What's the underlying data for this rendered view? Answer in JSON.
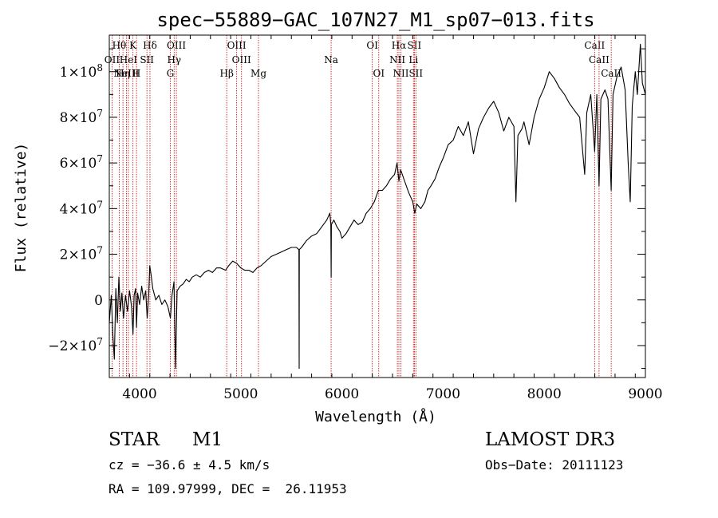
{
  "info": {
    "class": "STAR",
    "subclass": "M1",
    "cz": "cz = −36.6 ± 4.5 km/s",
    "radec": "RA = 109.97999, DEC =  26.11953",
    "survey": "LAMOST DR3",
    "obsdate": "Obs−Date: 20111123"
  },
  "chart_data": {
    "type": "line",
    "title": "spec−55889−GAC_107N27_M1_sp07−013.fits",
    "xlabel": "Wavelength (Å)",
    "ylabel": "Flux (relative)",
    "xlim": [
      3700,
      9000
    ],
    "ylim": [
      -34000000.0,
      116000000.0
    ],
    "xticks": [
      {
        "value": 4000,
        "label": "4000"
      },
      {
        "value": 5000,
        "label": "5000"
      },
      {
        "value": 6000,
        "label": "6000"
      },
      {
        "value": 7000,
        "label": "7000"
      },
      {
        "value": 8000,
        "label": "8000"
      },
      {
        "value": 9000,
        "label": "9000"
      }
    ],
    "yticks": [
      {
        "value": -20000000.0,
        "mantissa": "−2×10",
        "exp": "7"
      },
      {
        "value": 0,
        "mantissa": "0",
        "exp": ""
      },
      {
        "value": 20000000.0,
        "mantissa": "2×10",
        "exp": "7"
      },
      {
        "value": 40000000.0,
        "mantissa": "4×10",
        "exp": "7"
      },
      {
        "value": 60000000.0,
        "mantissa": "6×10",
        "exp": "7"
      },
      {
        "value": 80000000.0,
        "mantissa": "8×10",
        "exp": "7"
      },
      {
        "value": 100000000.0,
        "mantissa": "1×10",
        "exp": "8"
      }
    ],
    "line_color": "#000000",
    "marker_color": "#cc0000",
    "spectral_lines": [
      {
        "wave": 3798,
        "label": "Hθ",
        "row": 0
      },
      {
        "wave": 3727,
        "label": "OII",
        "row": 1
      },
      {
        "wave": 3835,
        "label": "Hη",
        "row": 2
      },
      {
        "wave": 3869,
        "label": "NeIII",
        "row": 2
      },
      {
        "wave": 3889,
        "label": "HeI",
        "row": 1
      },
      {
        "wave": 3934,
        "label": "K",
        "row": 0
      },
      {
        "wave": 3969,
        "label": "H",
        "row": 2
      },
      {
        "wave": 4072,
        "label": "SII",
        "row": 1
      },
      {
        "wave": 4102,
        "label": "Hδ",
        "row": 0
      },
      {
        "wave": 4304,
        "label": "G",
        "row": 2
      },
      {
        "wave": 4341,
        "label": "Hγ",
        "row": 1
      },
      {
        "wave": 4363,
        "label": "OIII",
        "row": 0
      },
      {
        "wave": 4861,
        "label": "Hβ",
        "row": 2
      },
      {
        "wave": 4959,
        "label": "OIII",
        "row": 0
      },
      {
        "wave": 5007,
        "label": "OIII",
        "row": 1
      },
      {
        "wave": 5175,
        "label": "Mg",
        "row": 2
      },
      {
        "wave": 5893,
        "label": "Na",
        "row": 1
      },
      {
        "wave": 6300,
        "label": "OI",
        "row": 0
      },
      {
        "wave": 6364,
        "label": "OI",
        "row": 2
      },
      {
        "wave": 6548,
        "label": "NII",
        "row": 1
      },
      {
        "wave": 6563,
        "label": "Hα",
        "row": 0
      },
      {
        "wave": 6583,
        "label": "NII",
        "row": 2
      },
      {
        "wave": 6707,
        "label": "Li",
        "row": 1
      },
      {
        "wave": 6716,
        "label": "SII",
        "row": 0
      },
      {
        "wave": 6731,
        "label": "SII",
        "row": 2
      },
      {
        "wave": 8498,
        "label": "CaII",
        "row": 0
      },
      {
        "wave": 8542,
        "label": "CaII",
        "row": 1
      },
      {
        "wave": 8662,
        "label": "CaII",
        "row": 2
      }
    ],
    "spectrum": [
      [
        3700,
        -10000000.0
      ],
      [
        3720,
        2000000.0
      ],
      [
        3735,
        -15000000.0
      ],
      [
        3750,
        -26000000.0
      ],
      [
        3765,
        5000000.0
      ],
      [
        3780,
        -10000000.0
      ],
      [
        3795,
        10000000.0
      ],
      [
        3810,
        -5000000.0
      ],
      [
        3825,
        3000000.0
      ],
      [
        3840,
        -8000000.0
      ],
      [
        3860,
        2000000.0
      ],
      [
        3880,
        -5000000.0
      ],
      [
        3900,
        4000000.0
      ],
      [
        3920,
        -3000000.0
      ],
      [
        3934,
        -15000000.0
      ],
      [
        3945,
        2000000.0
      ],
      [
        3960,
        5000000.0
      ],
      [
        3969,
        -12000000.0
      ],
      [
        3980,
        3000000.0
      ],
      [
        4000,
        -2000000.0
      ],
      [
        4020,
        6000000.0
      ],
      [
        4040,
        0.0
      ],
      [
        4060,
        4000000.0
      ],
      [
        4075,
        -8000000.0
      ],
      [
        4090,
        2000000.0
      ],
      [
        4100,
        15000000.0
      ],
      [
        4110,
        12000000.0
      ],
      [
        4130,
        5000000.0
      ],
      [
        4160,
        0.0
      ],
      [
        4190,
        2000000.0
      ],
      [
        4220,
        -2000000.0
      ],
      [
        4250,
        0.0
      ],
      [
        4280,
        -3000000.0
      ],
      [
        4304,
        -8000000.0
      ],
      [
        4320,
        2000000.0
      ],
      [
        4340,
        8000000.0
      ],
      [
        4355,
        -30000000.0
      ],
      [
        4370,
        4000000.0
      ],
      [
        4400,
        6000000.0
      ],
      [
        4430,
        7000000.0
      ],
      [
        4460,
        9000000.0
      ],
      [
        4490,
        8000000.0
      ],
      [
        4520,
        10000000.0
      ],
      [
        4560,
        11000000.0
      ],
      [
        4600,
        10000000.0
      ],
      [
        4640,
        12000000.0
      ],
      [
        4680,
        13000000.0
      ],
      [
        4720,
        12000000.0
      ],
      [
        4760,
        14000000.0
      ],
      [
        4800,
        14000000.0
      ],
      [
        4850,
        13000000.0
      ],
      [
        4880,
        15000000.0
      ],
      [
        4920,
        17000000.0
      ],
      [
        4960,
        16000000.0
      ],
      [
        5000,
        14000000.0
      ],
      [
        5040,
        13000000.0
      ],
      [
        5080,
        13000000.0
      ],
      [
        5120,
        12000000.0
      ],
      [
        5160,
        14000000.0
      ],
      [
        5200,
        15000000.0
      ],
      [
        5250,
        17000000.0
      ],
      [
        5300,
        19000000.0
      ],
      [
        5350,
        20000000.0
      ],
      [
        5400,
        21000000.0
      ],
      [
        5450,
        22000000.0
      ],
      [
        5500,
        23000000.0
      ],
      [
        5550,
        23000000.0
      ],
      [
        5575,
        22000000.0
      ],
      [
        5577,
        -30000000.0
      ],
      [
        5579,
        22000000.0
      ],
      [
        5600,
        23000000.0
      ],
      [
        5650,
        26000000.0
      ],
      [
        5700,
        28000000.0
      ],
      [
        5750,
        29000000.0
      ],
      [
        5800,
        32000000.0
      ],
      [
        5850,
        35000000.0
      ],
      [
        5880,
        38000000.0
      ],
      [
        5890,
        33000000.0
      ],
      [
        5893,
        10000000.0
      ],
      [
        5896,
        33000000.0
      ],
      [
        5920,
        35000000.0
      ],
      [
        5950,
        32000000.0
      ],
      [
        5980,
        30000000.0
      ],
      [
        6000,
        27000000.0
      ],
      [
        6040,
        29000000.0
      ],
      [
        6080,
        32000000.0
      ],
      [
        6120,
        35000000.0
      ],
      [
        6160,
        33000000.0
      ],
      [
        6200,
        34000000.0
      ],
      [
        6240,
        38000000.0
      ],
      [
        6280,
        40000000.0
      ],
      [
        6320,
        43000000.0
      ],
      [
        6360,
        48000000.0
      ],
      [
        6400,
        48000000.0
      ],
      [
        6440,
        50000000.0
      ],
      [
        6480,
        53000000.0
      ],
      [
        6520,
        55000000.0
      ],
      [
        6545,
        60000000.0
      ],
      [
        6563,
        52000000.0
      ],
      [
        6580,
        57000000.0
      ],
      [
        6620,
        52000000.0
      ],
      [
        6660,
        47000000.0
      ],
      [
        6700,
        43000000.0
      ],
      [
        6720,
        38000000.0
      ],
      [
        6740,
        42000000.0
      ],
      [
        6780,
        40000000.0
      ],
      [
        6820,
        43000000.0
      ],
      [
        6850,
        48000000.0
      ],
      [
        6880,
        50000000.0
      ],
      [
        6920,
        53000000.0
      ],
      [
        6960,
        58000000.0
      ],
      [
        7000,
        62000000.0
      ],
      [
        7050,
        68000000.0
      ],
      [
        7100,
        70000000.0
      ],
      [
        7150,
        76000000.0
      ],
      [
        7200,
        72000000.0
      ],
      [
        7250,
        78000000.0
      ],
      [
        7300,
        64000000.0
      ],
      [
        7350,
        75000000.0
      ],
      [
        7400,
        80000000.0
      ],
      [
        7450,
        84000000.0
      ],
      [
        7500,
        87000000.0
      ],
      [
        7550,
        82000000.0
      ],
      [
        7600,
        74000000.0
      ],
      [
        7650,
        80000000.0
      ],
      [
        7700,
        76000000.0
      ],
      [
        7720,
        43000000.0
      ],
      [
        7740,
        72000000.0
      ],
      [
        7780,
        75000000.0
      ],
      [
        7800,
        78000000.0
      ],
      [
        7850,
        68000000.0
      ],
      [
        7900,
        80000000.0
      ],
      [
        7950,
        88000000.0
      ],
      [
        8000,
        93000000.0
      ],
      [
        8050,
        100000000.0
      ],
      [
        8100,
        97000000.0
      ],
      [
        8150,
        93000000.0
      ],
      [
        8200,
        90000000.0
      ],
      [
        8250,
        86000000.0
      ],
      [
        8300,
        83000000.0
      ],
      [
        8350,
        80000000.0
      ],
      [
        8400,
        55000000.0
      ],
      [
        8420,
        82000000.0
      ],
      [
        8460,
        90000000.0
      ],
      [
        8498,
        65000000.0
      ],
      [
        8520,
        90000000.0
      ],
      [
        8542,
        50000000.0
      ],
      [
        8560,
        88000000.0
      ],
      [
        8600,
        92000000.0
      ],
      [
        8630,
        88000000.0
      ],
      [
        8662,
        48000000.0
      ],
      [
        8680,
        90000000.0
      ],
      [
        8720,
        98000000.0
      ],
      [
        8760,
        102000000.0
      ],
      [
        8800,
        92000000.0
      ],
      [
        8830,
        60000000.0
      ],
      [
        8850,
        43000000.0
      ],
      [
        8870,
        85000000.0
      ],
      [
        8900,
        100000000.0
      ],
      [
        8920,
        90000000.0
      ],
      [
        8950,
        112000000.0
      ],
      [
        8970,
        95000000.0
      ],
      [
        9000,
        90000000.0
      ]
    ]
  }
}
